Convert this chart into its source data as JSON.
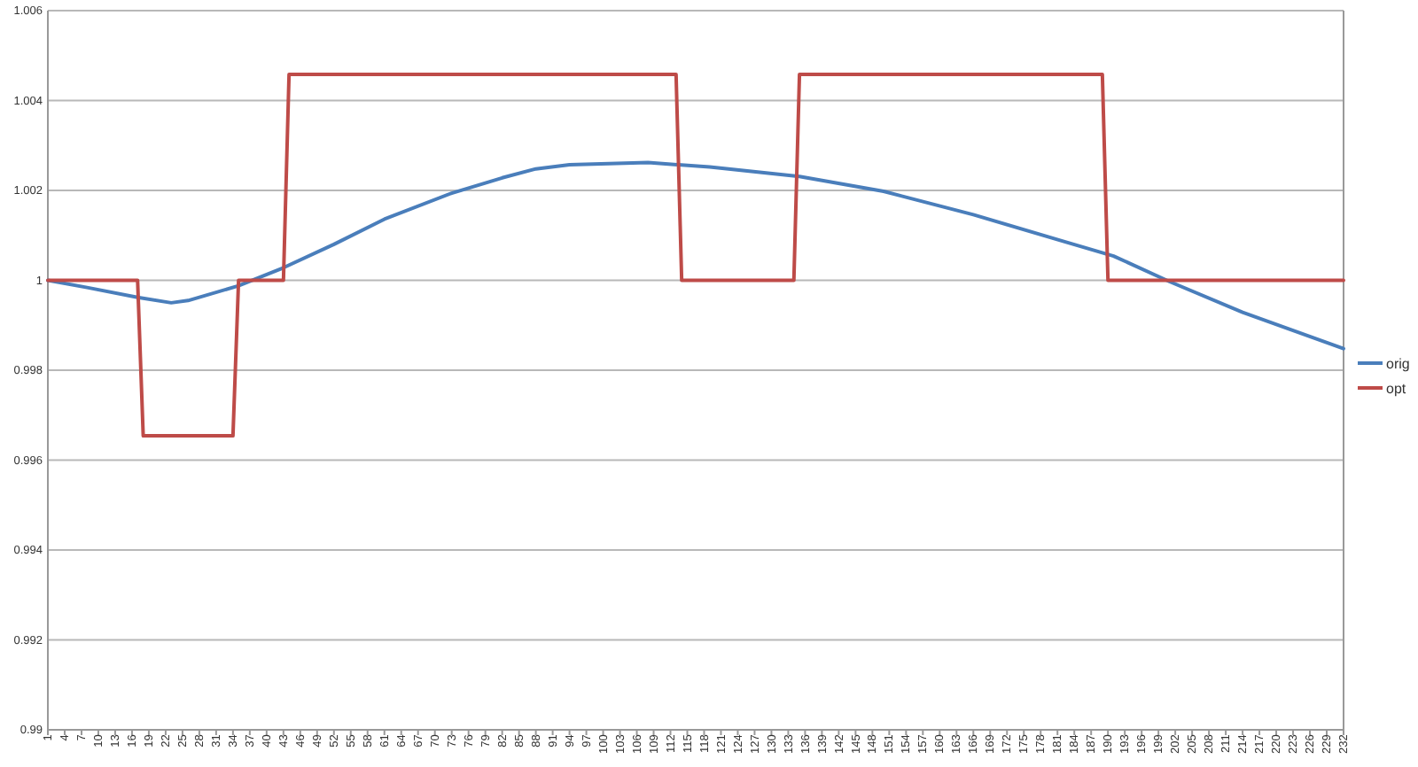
{
  "chart_data": {
    "type": "line",
    "xlim": [
      1,
      232
    ],
    "xticks": [
      1,
      4,
      7,
      10,
      13,
      16,
      19,
      22,
      25,
      28,
      31,
      34,
      37,
      40,
      43,
      46,
      49,
      52,
      55,
      58,
      61,
      64,
      67,
      70,
      73,
      76,
      79,
      82,
      85,
      88,
      91,
      94,
      97,
      100,
      103,
      106,
      109,
      112,
      115,
      118,
      121,
      124,
      127,
      130,
      133,
      136,
      139,
      142,
      145,
      148,
      151,
      154,
      157,
      160,
      163,
      166,
      169,
      172,
      175,
      178,
      181,
      184,
      187,
      190,
      193,
      196,
      199,
      202,
      205,
      208,
      211,
      214,
      217,
      220,
      223,
      226,
      229,
      232
    ],
    "ylim": [
      0.99,
      1.006
    ],
    "yticks": [
      0.99,
      0.992,
      0.994,
      0.996,
      0.998,
      1,
      1.002,
      1.004,
      1.006
    ],
    "grid": "y",
    "legend": "right",
    "marker": "none",
    "line_style": "solid",
    "series": [
      {
        "name": "orig",
        "color": "#4a7ebb",
        "x": [
          1,
          8,
          17,
          23,
          26,
          35,
          43,
          52,
          61,
          73,
          82,
          88,
          94,
          108,
          119,
          135,
          150,
          166,
          182,
          191,
          201,
          214,
          232
        ],
        "values": [
          1,
          0.99984,
          0.99962,
          0.9995,
          0.99955,
          0.99988,
          1.00028,
          1.0008,
          1.00136,
          1.00194,
          1.00228,
          1.00248,
          1.00257,
          1.00262,
          1.00252,
          1.00231,
          1.00198,
          1.00146,
          1.00087,
          1.00054,
          0.99997,
          0.99929,
          0.99848
        ]
      },
      {
        "name": "opt",
        "color": "#be4b48",
        "x": [
          1,
          17,
          18,
          34,
          35,
          43,
          44,
          113,
          114,
          134,
          135,
          189,
          190,
          232
        ],
        "values": [
          1,
          1,
          0.99654,
          0.99654,
          1,
          1,
          1.00458,
          1.00458,
          1,
          1,
          1.00458,
          1.00458,
          1,
          1
        ]
      }
    ]
  }
}
